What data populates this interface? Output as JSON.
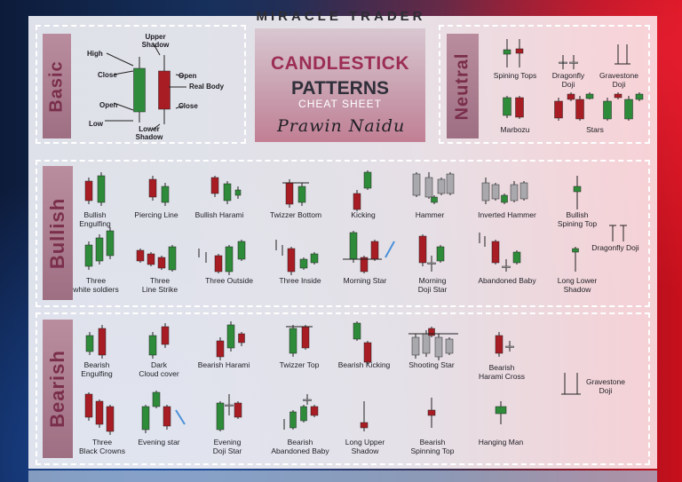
{
  "brand": "MIRACLE TRADER",
  "title": {
    "line1": "CANDLESTICK",
    "line2": "PATTERNS",
    "line3": "CHEAT SHEET",
    "signature": "Prawin Naidu"
  },
  "sections": {
    "basic": "Basic",
    "neutral": "Neutral",
    "bullish": "Bullish",
    "bearish": "Bearish"
  },
  "basic_labels": {
    "upper_shadow": "Upper Shadow",
    "high": "High",
    "close_left": "Close",
    "open_right": "Open",
    "real_body": "Real Body",
    "open_left": "Open",
    "close_right": "Close",
    "low": "Low",
    "lower_shadow": "Lower Shadow"
  },
  "neutral": [
    "Spining Tops",
    "Dragonfly Doji",
    "Gravestone Doji",
    "Marbozu",
    "Stars"
  ],
  "bullish_row1": [
    "Bullish Engulfing",
    "Piercing Line",
    "Bullish Harami",
    "Twizzer Bottom",
    "Kicking",
    "Hammer",
    "Inverted Hammer",
    "Bullish Spining Top"
  ],
  "bullish_row2": [
    "Three white soldiers",
    "Three Line Strike",
    "Three Outside",
    "Three Inside",
    "Morning Star",
    "Morning Doji Star",
    "Abandoned Baby",
    "Long Lower Shadow",
    "Dragonfly Doji"
  ],
  "bearish_row1": [
    "Bearish Engulfing",
    "Dark Cloud cover",
    "Bearish Harami",
    "Twizzer Top",
    "Bearish Kicking",
    "Shooting Star",
    "Bearish Harami Cross",
    "Gravestone Doji"
  ],
  "bearish_row2": [
    "Three Black Crowns",
    "Evening star",
    "Evening Doji Star",
    "Bearish Abandoned Baby",
    "Long Upper Shadow",
    "Bearish Spinning Top",
    "Hanging Man"
  ],
  "colors": {
    "bull": "#2e8b3a",
    "bear": "#a81c24",
    "grey": "#a9a9ad",
    "band": "#a67688"
  }
}
